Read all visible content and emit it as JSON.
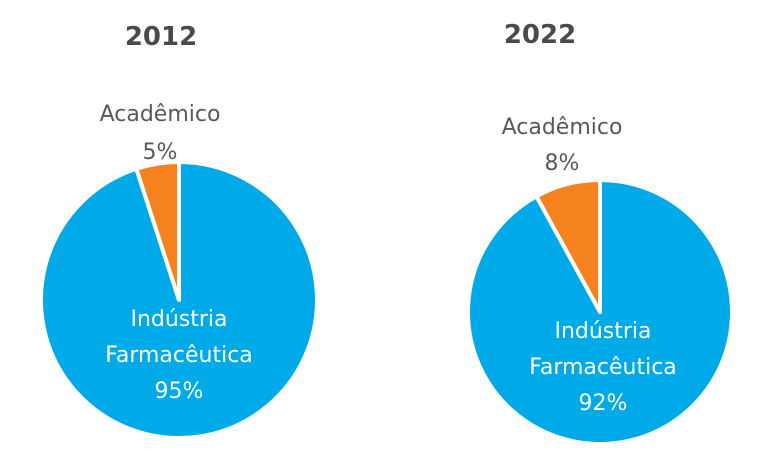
{
  "chart_data": [
    {
      "type": "pie",
      "title": "2012",
      "categories": [
        "Indústria Farmacêutica",
        "Acadêmico"
      ],
      "values": [
        95,
        5
      ],
      "labels": [
        [
          "Indústria",
          "Farmacêutica",
          "95%"
        ],
        [
          "Acadêmico",
          "5%"
        ]
      ],
      "colors": [
        "#00A9E8",
        "#F5821F"
      ]
    },
    {
      "type": "pie",
      "title": "2022",
      "categories": [
        "Indústria Farmacêutica",
        "Acadêmico"
      ],
      "values": [
        92,
        8
      ],
      "labels": [
        [
          "Indústria",
          "Farmacêutica",
          "92%"
        ],
        [
          "Acadêmico",
          "8%"
        ]
      ],
      "colors": [
        "#00A9E8",
        "#F5821F"
      ]
    }
  ]
}
